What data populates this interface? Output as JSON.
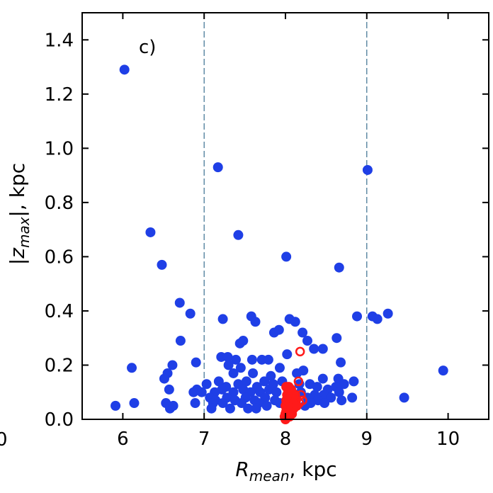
{
  "chart_data": {
    "type": "scatter",
    "panel_label": "c)",
    "xlabel": {
      "main": "R",
      "sub": "mean",
      "suffix": ", kpc"
    },
    "ylabel": {
      "prefix": "|z",
      "sub": "max",
      "suffix": "|, kpc"
    },
    "xlim": [
      5.5,
      10.5
    ],
    "ylim": [
      0.0,
      1.5
    ],
    "x_ticks": [
      6,
      7,
      8,
      9,
      10
    ],
    "x_tick_labels": [
      "6",
      "7",
      "8",
      "9",
      "10"
    ],
    "left_edge_fragment": "0",
    "y_ticks": [
      0.0,
      0.2,
      0.4,
      0.6,
      0.8,
      1.0,
      1.2,
      1.4
    ],
    "y_tick_labels": [
      "0.0",
      "0.2",
      "0.4",
      "0.6",
      "0.8",
      "1.0",
      "1.2",
      "1.4"
    ],
    "vlines": [
      7.0,
      9.0
    ],
    "vline_color": "#3a6f8f",
    "grid": false,
    "series": [
      {
        "marker": "filled-circle",
        "color": "#1f3fe6",
        "points": [
          [
            6.02,
            1.29
          ],
          [
            7.17,
            0.93
          ],
          [
            9.01,
            0.92
          ],
          [
            6.34,
            0.69
          ],
          [
            7.42,
            0.68
          ],
          [
            8.01,
            0.6
          ],
          [
            6.48,
            0.57
          ],
          [
            8.66,
            0.56
          ],
          [
            6.7,
            0.43
          ],
          [
            6.83,
            0.39
          ],
          [
            7.23,
            0.37
          ],
          [
            7.58,
            0.38
          ],
          [
            7.63,
            0.36
          ],
          [
            8.05,
            0.37
          ],
          [
            8.12,
            0.36
          ],
          [
            8.88,
            0.38
          ],
          [
            9.07,
            0.38
          ],
          [
            9.13,
            0.37
          ],
          [
            9.26,
            0.39
          ],
          [
            7.86,
            0.32
          ],
          [
            7.92,
            0.33
          ],
          [
            8.21,
            0.32
          ],
          [
            8.63,
            0.3
          ],
          [
            8.27,
            0.29
          ],
          [
            6.71,
            0.29
          ],
          [
            7.44,
            0.28
          ],
          [
            7.48,
            0.29
          ],
          [
            8.35,
            0.26
          ],
          [
            8.46,
            0.26
          ],
          [
            8.02,
            0.24
          ],
          [
            7.21,
            0.23
          ],
          [
            7.29,
            0.23
          ],
          [
            7.39,
            0.22
          ],
          [
            7.59,
            0.22
          ],
          [
            7.71,
            0.22
          ],
          [
            7.79,
            0.22
          ],
          [
            6.9,
            0.21
          ],
          [
            6.61,
            0.2
          ],
          [
            6.11,
            0.19
          ],
          [
            6.55,
            0.17
          ],
          [
            7.3,
            0.2
          ],
          [
            7.36,
            0.17
          ],
          [
            7.45,
            0.19
          ],
          [
            7.93,
            0.19
          ],
          [
            8.22,
            0.18
          ],
          [
            8.68,
            0.21
          ],
          [
            7.6,
            0.17
          ],
          [
            7.82,
            0.16
          ],
          [
            8.14,
            0.17
          ],
          [
            8.65,
            0.15
          ],
          [
            8.72,
            0.13
          ],
          [
            8.84,
            0.14
          ],
          [
            8.46,
            0.15
          ],
          [
            6.51,
            0.15
          ],
          [
            7.03,
            0.13
          ],
          [
            7.18,
            0.14
          ],
          [
            7.27,
            0.12
          ],
          [
            7.42,
            0.13
          ],
          [
            7.52,
            0.14
          ],
          [
            7.65,
            0.12
          ],
          [
            7.74,
            0.14
          ],
          [
            7.85,
            0.13
          ],
          [
            7.96,
            0.14
          ],
          [
            8.17,
            0.13
          ],
          [
            8.3,
            0.13
          ],
          [
            8.39,
            0.12
          ],
          [
            8.52,
            0.11
          ],
          [
            8.62,
            0.12
          ],
          [
            6.57,
            0.11
          ],
          [
            6.91,
            0.11
          ],
          [
            6.87,
            0.1
          ],
          [
            6.97,
            0.1
          ],
          [
            7.13,
            0.1
          ],
          [
            7.22,
            0.11
          ],
          [
            7.36,
            0.1
          ],
          [
            7.48,
            0.11
          ],
          [
            7.57,
            0.1
          ],
          [
            7.69,
            0.1
          ],
          [
            7.8,
            0.11
          ],
          [
            7.89,
            0.1
          ],
          [
            8.19,
            0.1
          ],
          [
            8.36,
            0.09
          ],
          [
            8.47,
            0.09
          ],
          [
            8.66,
            0.1
          ],
          [
            9.94,
            0.18
          ],
          [
            7.07,
            0.08
          ],
          [
            7.14,
            0.07
          ],
          [
            7.28,
            0.08
          ],
          [
            7.38,
            0.07
          ],
          [
            7.51,
            0.08
          ],
          [
            7.62,
            0.07
          ],
          [
            7.75,
            0.08
          ],
          [
            7.87,
            0.07
          ],
          [
            8.27,
            0.08
          ],
          [
            8.4,
            0.07
          ],
          [
            8.56,
            0.08
          ],
          [
            8.69,
            0.07
          ],
          [
            8.82,
            0.08
          ],
          [
            9.46,
            0.08
          ],
          [
            6.53,
            0.06
          ],
          [
            6.89,
            0.06
          ],
          [
            7.11,
            0.06
          ],
          [
            7.23,
            0.06
          ],
          [
            7.46,
            0.06
          ],
          [
            7.67,
            0.06
          ],
          [
            7.93,
            0.06
          ],
          [
            8.31,
            0.06
          ],
          [
            8.48,
            0.06
          ],
          [
            5.91,
            0.05
          ],
          [
            6.14,
            0.06
          ],
          [
            6.58,
            0.04
          ],
          [
            6.62,
            0.05
          ],
          [
            7.09,
            0.04
          ],
          [
            7.32,
            0.04
          ],
          [
            7.54,
            0.04
          ],
          [
            7.64,
            0.04
          ],
          [
            7.77,
            0.05
          ],
          [
            8.24,
            0.05
          ],
          [
            8.08,
            0.1
          ],
          [
            8.12,
            0.05
          ]
        ]
      },
      {
        "marker": "filled-circle",
        "color": "#ff1a1a",
        "points": [
          [
            8.0,
            0.02
          ],
          [
            8.01,
            0.03
          ],
          [
            8.02,
            0.04
          ],
          [
            8.0,
            0.05
          ],
          [
            8.03,
            0.06
          ],
          [
            8.01,
            0.07
          ],
          [
            8.04,
            0.08
          ],
          [
            8.02,
            0.09
          ],
          [
            8.05,
            0.1
          ],
          [
            8.03,
            0.11
          ],
          [
            8.06,
            0.06
          ],
          [
            8.07,
            0.04
          ],
          [
            8.08,
            0.07
          ],
          [
            8.09,
            0.05
          ],
          [
            8.1,
            0.08
          ],
          [
            8.11,
            0.06
          ],
          [
            8.12,
            0.09
          ],
          [
            7.99,
            0.01
          ],
          [
            8.0,
            0.0
          ],
          [
            8.02,
            0.01
          ],
          [
            8.04,
            0.02
          ],
          [
            8.06,
            0.03
          ],
          [
            8.05,
            0.01
          ],
          [
            8.08,
            0.02
          ],
          [
            8.1,
            0.04
          ],
          [
            8.13,
            0.07
          ],
          [
            8.14,
            0.05
          ],
          [
            8.01,
            0.12
          ],
          [
            8.04,
            0.12
          ],
          [
            8.07,
            0.11
          ]
        ]
      },
      {
        "marker": "open-circle",
        "color": "#ff1a1a",
        "points": [
          [
            8.18,
            0.25
          ],
          [
            8.16,
            0.14
          ],
          [
            8.19,
            0.09
          ],
          [
            8.21,
            0.07
          ],
          [
            8.17,
            0.06
          ]
        ]
      }
    ]
  }
}
